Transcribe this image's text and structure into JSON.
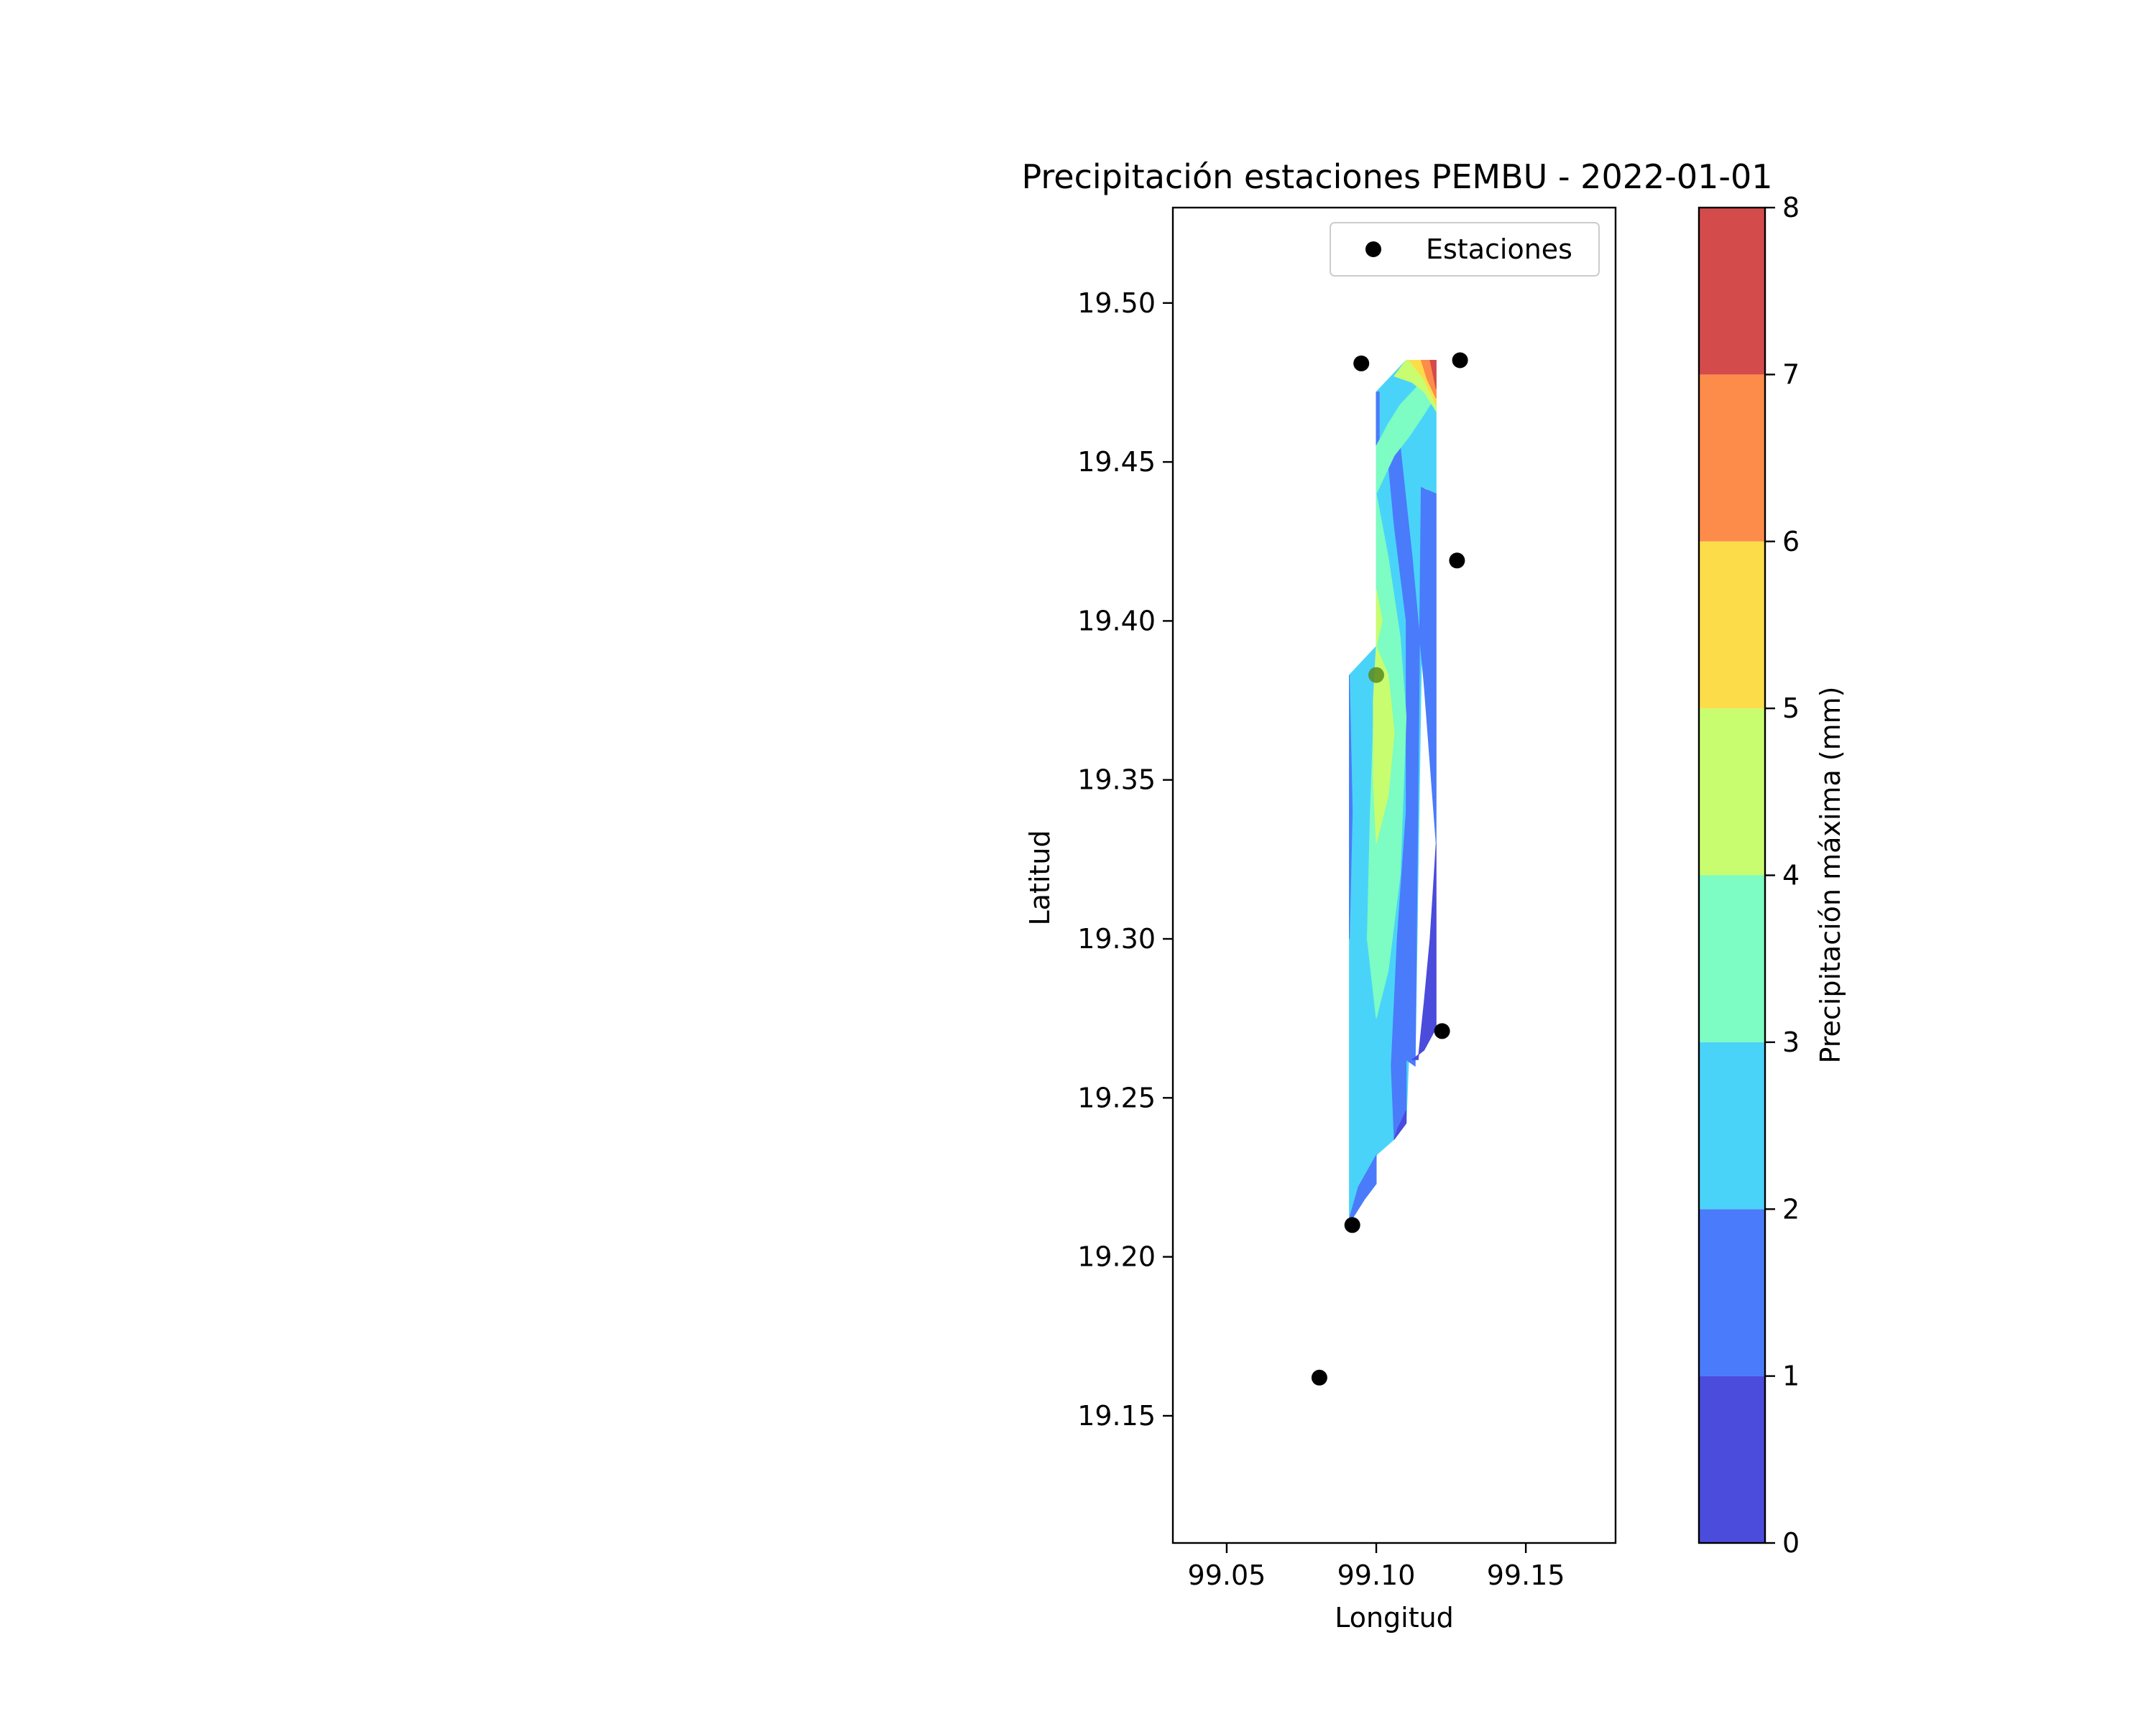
{
  "chart_data": {
    "type": "filled-contour-with-scatter",
    "title": "Precipitación estaciones PEMBU - 2022-01-01",
    "xlabel": "Longitud",
    "ylabel": "Latitud",
    "xlim": [
      99.032,
      99.18
    ],
    "ylim": [
      19.11,
      19.53
    ],
    "xticks": [
      99.05,
      99.1,
      99.15
    ],
    "xtick_labels": [
      "99.05",
      "99.10",
      "99.15"
    ],
    "yticks": [
      19.15,
      19.2,
      19.25,
      19.3,
      19.35,
      19.4,
      19.45,
      19.5
    ],
    "ytick_labels": [
      "19.15",
      "19.20",
      "19.25",
      "19.30",
      "19.35",
      "19.40",
      "19.45",
      "19.50"
    ],
    "legend": {
      "placement": "top-right",
      "label": "Estaciones"
    },
    "colorbar": {
      "label": "Precipitación máxima (mm)",
      "levels": [
        0,
        1,
        2,
        3,
        4,
        5,
        6,
        7,
        8
      ],
      "tick_labels": [
        "0",
        "1",
        "2",
        "3",
        "4",
        "5",
        "6",
        "7",
        "8"
      ],
      "colors": [
        "#4b4bdc",
        "#4a7bfa",
        "#4ad3f9",
        "#7dfcc3",
        "#c8fd70",
        "#fddc4a",
        "#fd8b4a",
        "#d44b4b"
      ]
    },
    "stations": [
      {
        "lon": 99.095,
        "lat": 19.481
      },
      {
        "lon": 99.128,
        "lat": 19.482
      },
      {
        "lon": 99.127,
        "lat": 19.419
      },
      {
        "lon": 99.1,
        "lat": 19.383
      },
      {
        "lon": 99.122,
        "lat": 19.271
      },
      {
        "lon": 99.092,
        "lat": 19.21
      },
      {
        "lon": 99.081,
        "lat": 19.162
      }
    ],
    "contour_regions": [
      {
        "level": 2,
        "points": [
          [
            99.091,
            19.383
          ],
          [
            99.1,
            19.392
          ],
          [
            99.1,
            19.472
          ],
          [
            99.105,
            19.477
          ],
          [
            99.11,
            19.482
          ],
          [
            99.12,
            19.482
          ],
          [
            99.12,
            19.44
          ],
          [
            99.116,
            19.442
          ],
          [
            99.113,
            19.26
          ],
          [
            99.111,
            19.266
          ],
          [
            99.11,
            19.242
          ],
          [
            99.106,
            19.237
          ],
          [
            99.1,
            19.232
          ],
          [
            99.1,
            19.223
          ],
          [
            99.091,
            19.212
          ]
        ]
      },
      {
        "level": 1,
        "points": [
          [
            99.104,
            19.45
          ],
          [
            99.108,
            19.455
          ],
          [
            99.112,
            19.42
          ],
          [
            99.116,
            19.38
          ],
          [
            99.12,
            19.33
          ],
          [
            99.12,
            19.44
          ],
          [
            99.115,
            19.442
          ],
          [
            99.113,
            19.26
          ],
          [
            99.11,
            19.262
          ],
          [
            99.11,
            19.242
          ],
          [
            99.106,
            19.237
          ],
          [
            99.105,
            19.26
          ],
          [
            99.107,
            19.3
          ],
          [
            99.11,
            19.34
          ],
          [
            99.11,
            19.4
          ],
          [
            99.106,
            19.43
          ]
        ]
      },
      {
        "level": 1,
        "points": [
          [
            99.091,
            19.383
          ],
          [
            99.092,
            19.34
          ],
          [
            99.091,
            19.3
          ],
          [
            99.091,
            19.383
          ]
        ]
      },
      {
        "level": 1,
        "points": [
          [
            99.1,
            19.472
          ],
          [
            99.101,
            19.472
          ],
          [
            99.101,
            19.45
          ],
          [
            99.1,
            19.45
          ]
        ]
      },
      {
        "level": 1,
        "points": [
          [
            99.091,
            19.212
          ],
          [
            99.094,
            19.222
          ],
          [
            99.1,
            19.232
          ],
          [
            99.1,
            19.223
          ],
          [
            99.096,
            19.218
          ],
          [
            99.092,
            19.212
          ]
        ]
      },
      {
        "level": 0,
        "points": [
          [
            99.112,
            19.262
          ],
          [
            99.116,
            19.265
          ],
          [
            99.12,
            19.272
          ],
          [
            99.12,
            19.33
          ],
          [
            99.118,
            19.3
          ],
          [
            99.116,
            19.28
          ],
          [
            99.114,
            19.262
          ]
        ]
      },
      {
        "level": 0,
        "points": [
          [
            99.106,
            19.237
          ],
          [
            99.11,
            19.242
          ],
          [
            99.11,
            19.246
          ],
          [
            99.107,
            19.24
          ]
        ]
      },
      {
        "level": 3,
        "points": [
          [
            99.1,
            19.44
          ],
          [
            99.104,
            19.42
          ],
          [
            99.108,
            19.395
          ],
          [
            99.11,
            19.37
          ],
          [
            99.108,
            19.32
          ],
          [
            99.104,
            19.29
          ],
          [
            99.1,
            19.275
          ],
          [
            99.097,
            19.3
          ],
          [
            99.098,
            19.34
          ],
          [
            99.1,
            19.392
          ],
          [
            99.1,
            19.44
          ]
        ]
      },
      {
        "level": 3,
        "points": [
          [
            99.1,
            19.44
          ],
          [
            99.106,
            19.452
          ],
          [
            99.111,
            19.458
          ],
          [
            99.116,
            19.465
          ],
          [
            99.12,
            19.471
          ],
          [
            99.12,
            19.478
          ],
          [
            99.114,
            19.474
          ],
          [
            99.108,
            19.468
          ],
          [
            99.104,
            19.462
          ],
          [
            99.1,
            19.455
          ]
        ]
      },
      {
        "level": 4,
        "points": [
          [
            99.1,
            19.392
          ],
          [
            99.104,
            19.383
          ],
          [
            99.106,
            19.365
          ],
          [
            99.104,
            19.345
          ],
          [
            99.1,
            19.33
          ],
          [
            99.099,
            19.35
          ],
          [
            99.099,
            19.375
          ]
        ]
      },
      {
        "level": 4,
        "points": [
          [
            99.1,
            19.392
          ],
          [
            99.1,
            19.41
          ],
          [
            99.102,
            19.4
          ]
        ]
      },
      {
        "level": 4,
        "points": [
          [
            99.106,
            19.477
          ],
          [
            99.11,
            19.482
          ],
          [
            99.116,
            19.482
          ],
          [
            99.12,
            19.475
          ],
          [
            99.12,
            19.466
          ],
          [
            99.116,
            19.472
          ],
          [
            99.112,
            19.475
          ]
        ]
      },
      {
        "level": 5,
        "points": [
          [
            99.111,
            19.482
          ],
          [
            99.116,
            19.482
          ],
          [
            99.12,
            19.474
          ],
          [
            99.12,
            19.468
          ],
          [
            99.116,
            19.476
          ]
        ]
      },
      {
        "level": 6,
        "points": [
          [
            99.115,
            19.482
          ],
          [
            99.12,
            19.482
          ],
          [
            99.12,
            19.47
          ],
          [
            99.117,
            19.476
          ]
        ]
      },
      {
        "level": 7,
        "points": [
          [
            99.118,
            19.482
          ],
          [
            99.12,
            19.482
          ],
          [
            99.12,
            19.473
          ]
        ]
      }
    ]
  }
}
